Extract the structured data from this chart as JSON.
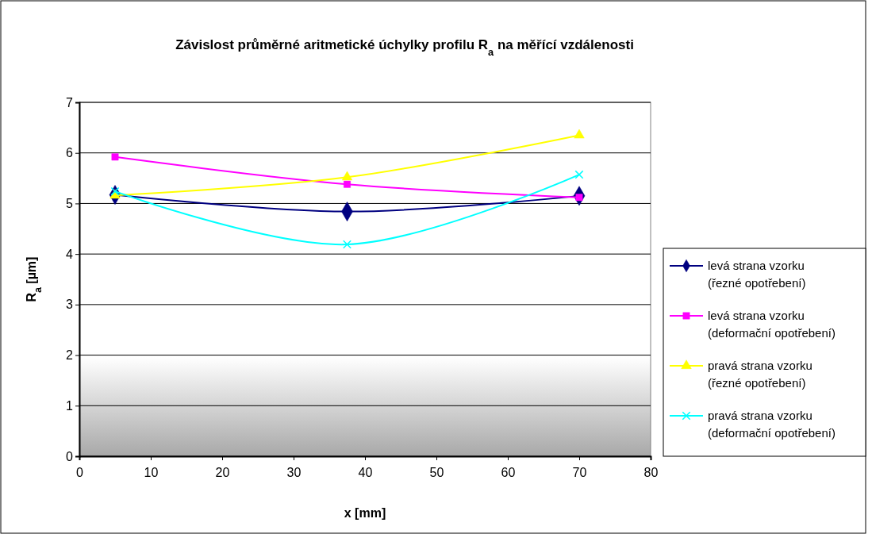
{
  "chart_data": {
    "type": "line",
    "title": "Závislost průměrné aritmetické úchylky profilu R$_{a}$ na měřící vzdálenosti",
    "xlabel": "x [mm]",
    "ylabel": "R$_{a}$ [µm]",
    "x": [
      5,
      37.5,
      70
    ],
    "xlim": [
      0,
      80
    ],
    "xticks": [
      0,
      10,
      20,
      30,
      40,
      50,
      60,
      70,
      80
    ],
    "ylim": [
      0,
      7
    ],
    "yticks": [
      0,
      1,
      2,
      3,
      4,
      5,
      6,
      7
    ],
    "grid": "y",
    "legend": "right",
    "series": [
      {
        "name": "levá strana vzorku (řezné opotřebení)",
        "color": "#000080",
        "marker": "diamond",
        "values": [
          5.17,
          4.84,
          5.15
        ]
      },
      {
        "name": "levá strana vzorku (deformační opotřebení)",
        "color": "#ff00ff",
        "marker": "square",
        "values": [
          5.92,
          5.38,
          5.12
        ]
      },
      {
        "name": "pravá strana vzorku (řezné opotřebení)",
        "color": "#ffff00",
        "marker": "triangle",
        "values": [
          5.16,
          5.52,
          6.35
        ]
      },
      {
        "name": "pravá strana vzorku (deformační opotřebení)",
        "color": "#00ffff",
        "marker": "cross",
        "values": [
          5.24,
          4.19,
          5.57
        ]
      }
    ]
  }
}
